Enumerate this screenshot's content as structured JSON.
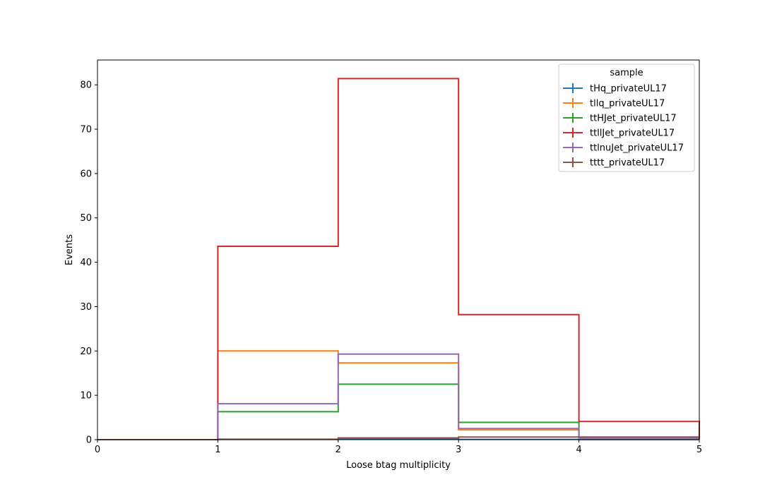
{
  "chart_data": {
    "type": "line",
    "style": "step-histogram",
    "xlabel": "Loose btag multiplicity",
    "ylabel": "Events",
    "xlim": [
      0,
      5
    ],
    "ylim": [
      0,
      85.6
    ],
    "x_ticks": [
      "0",
      "1",
      "2",
      "3",
      "4",
      "5"
    ],
    "y_ticks": [
      "0",
      "10",
      "20",
      "30",
      "40",
      "50",
      "60",
      "70",
      "80"
    ],
    "grid": false,
    "legend": {
      "title": "sample",
      "placement": "top-right"
    },
    "bin_edges": [
      0,
      1,
      2,
      3,
      4,
      5
    ],
    "series": [
      {
        "name": "tHq_privateUL17",
        "color": "#1f77b4",
        "values": [
          0,
          0.05,
          0.1,
          0.05,
          0.02
        ]
      },
      {
        "name": "tllq_privateUL17",
        "color": "#ff7f0e",
        "values": [
          0,
          20.0,
          17.3,
          2.2,
          0.3
        ]
      },
      {
        "name": "ttHJet_privateUL17",
        "color": "#2ca02c",
        "values": [
          0,
          6.3,
          12.5,
          3.9,
          0.4
        ]
      },
      {
        "name": "ttllJet_privateUL17",
        "color": "#d62728",
        "values": [
          0,
          43.6,
          81.4,
          28.2,
          4.1
        ]
      },
      {
        "name": "ttlnuJet_privateUL17",
        "color": "#9467bd",
        "values": [
          0,
          8.1,
          19.3,
          2.5,
          0.4
        ]
      },
      {
        "name": "tttt_privateUL17",
        "color": "#8c564b",
        "values": [
          0,
          0.1,
          0.4,
          0.6,
          0.6
        ]
      }
    ]
  }
}
